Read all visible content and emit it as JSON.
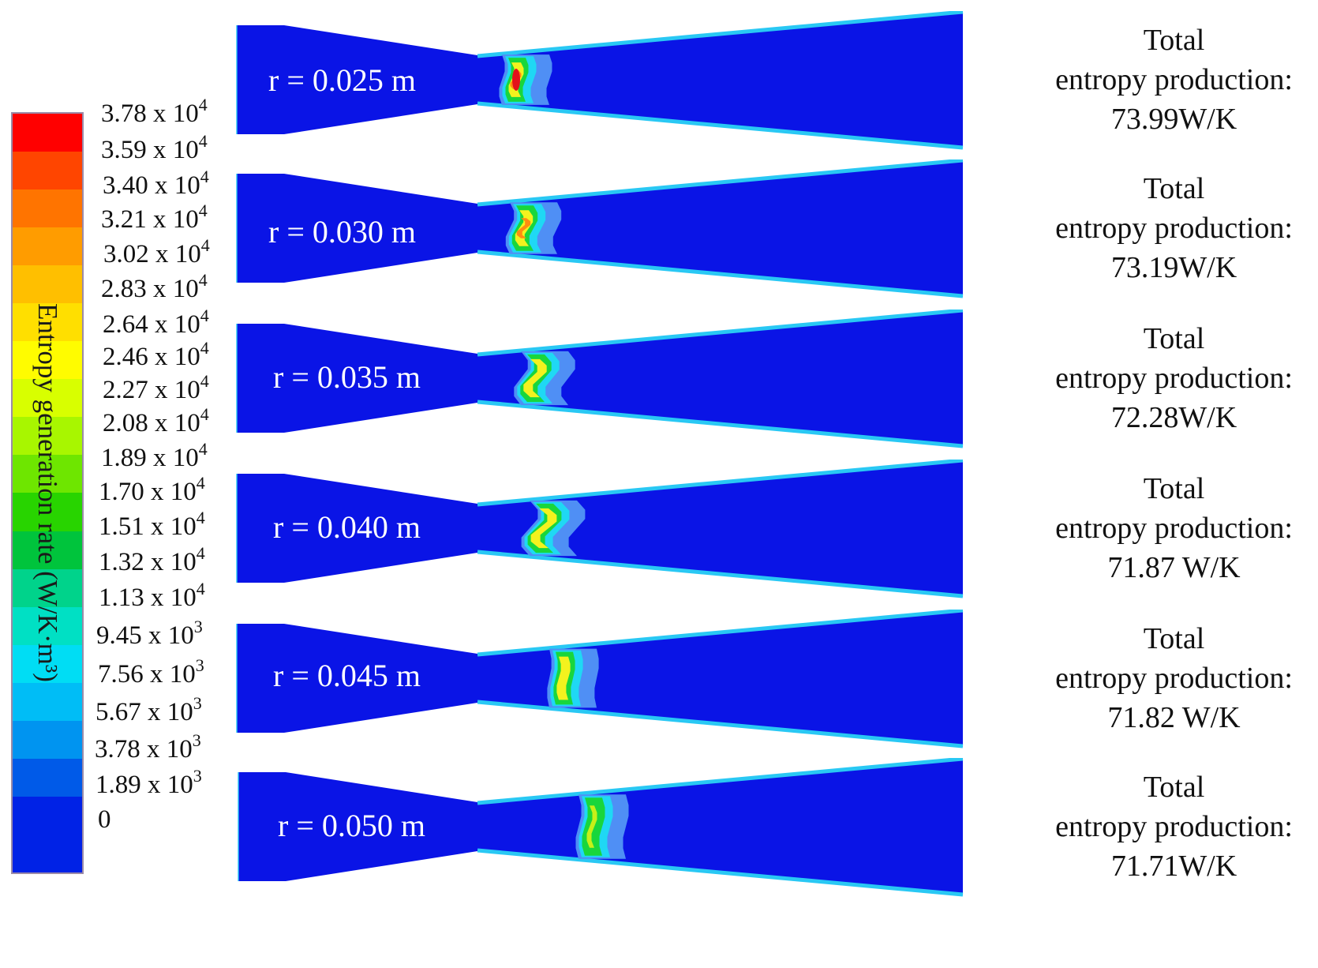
{
  "legend": {
    "title": "Entropy generation rate (W/K·m³)",
    "band_colors": [
      "#ff0000",
      "#ff4500",
      "#ff7400",
      "#ff9c00",
      "#ffbf00",
      "#ffdf00",
      "#fffc00",
      "#d8ff00",
      "#a8f600",
      "#6ee600",
      "#28d400",
      "#00c43c",
      "#00d38b",
      "#00e0c4",
      "#00ddf4",
      "#00bdf6",
      "#0094f0",
      "#005ae8",
      "#0022e6"
    ],
    "ticks": [
      {
        "mantissa": "3.78 x 10",
        "exp": "4"
      },
      {
        "mantissa": "3.59 x 10",
        "exp": "4"
      },
      {
        "mantissa": "3.40 x 10",
        "exp": "4"
      },
      {
        "mantissa": "3.21 x 10",
        "exp": "4"
      },
      {
        "mantissa": "3.02 x 10",
        "exp": "4"
      },
      {
        "mantissa": "2.83 x 10",
        "exp": "4"
      },
      {
        "mantissa": "2.64 x 10",
        "exp": "4"
      },
      {
        "mantissa": "2.46 x 10",
        "exp": "4"
      },
      {
        "mantissa": "2.27 x 10",
        "exp": "4"
      },
      {
        "mantissa": "2.08 x 10",
        "exp": "4"
      },
      {
        "mantissa": "1.89 x 10",
        "exp": "4"
      },
      {
        "mantissa": "1.70 x 10",
        "exp": "4"
      },
      {
        "mantissa": "1.51 x 10",
        "exp": "4"
      },
      {
        "mantissa": "1.32 x 10",
        "exp": "4"
      },
      {
        "mantissa": "1.13 x 10",
        "exp": "4"
      },
      {
        "mantissa": "9.45 x 10",
        "exp": "3"
      },
      {
        "mantissa": "7.56 x 10",
        "exp": "3"
      },
      {
        "mantissa": "5.67 x 10",
        "exp": "3"
      },
      {
        "mantissa": "3.78 x 10",
        "exp": "3"
      },
      {
        "mantissa": "1.89 x 10",
        "exp": "3"
      },
      {
        "mantissa": "0",
        "exp": ""
      }
    ]
  },
  "colors": {
    "field": "#0a14e6",
    "wall": "#29c8f4",
    "shock_outer": "#4f8ff5",
    "shock_mid": "#1fd8f4",
    "shock_green": "#19d63c",
    "shock_yellow": "#f3f21e",
    "shock_orange": "#ff8c10",
    "shock_red": "#e3121a"
  },
  "cases": [
    {
      "radius_label": "r = 0.025 m",
      "total_label": "Total",
      "entropy_label": "entropy production:",
      "value": "73.99W/K",
      "peak_level": "red"
    },
    {
      "radius_label": "r = 0.030 m",
      "total_label": "Total",
      "entropy_label": "entropy production:",
      "value": "73.19W/K",
      "peak_level": "orange"
    },
    {
      "radius_label": "r = 0.035 m",
      "total_label": "Total",
      "entropy_label": "entropy production:",
      "value": "72.28W/K",
      "peak_level": "yellow"
    },
    {
      "radius_label": "r = 0.040 m",
      "total_label": "Total",
      "entropy_label": "entropy production:",
      "value": "71.87 W/K",
      "peak_level": "yellow"
    },
    {
      "radius_label": "r = 0.045 m",
      "total_label": "Total",
      "entropy_label": "entropy production:",
      "value": "71.82 W/K",
      "peak_level": "yellow"
    },
    {
      "radius_label": "r = 0.050 m",
      "total_label": "Total",
      "entropy_label": "entropy production:",
      "value": "71.71W/K",
      "peak_level": "green"
    }
  ]
}
